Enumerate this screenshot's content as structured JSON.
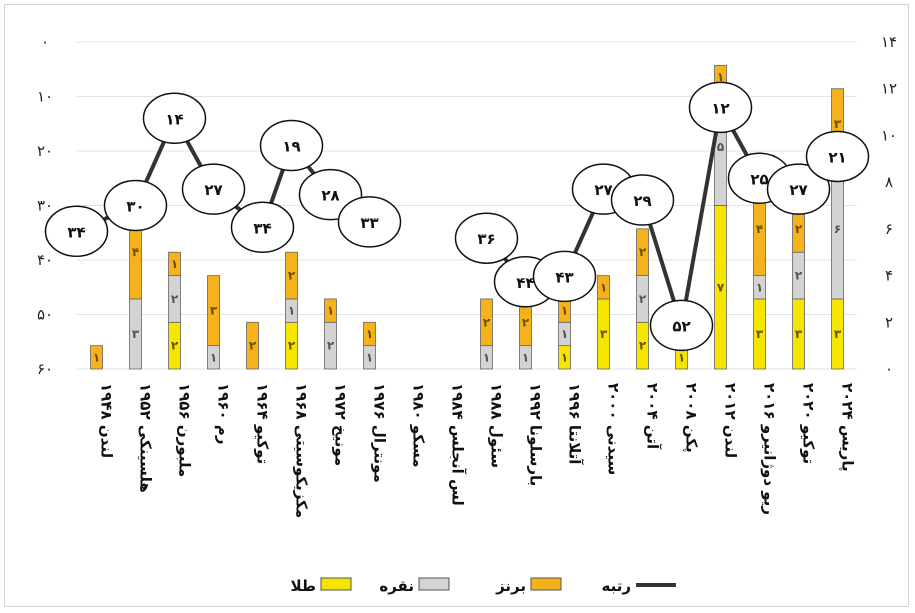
{
  "chart_data": {
    "type": "bar",
    "stacked": true,
    "categories": [
      "لندن ۱۹۴۸",
      "هلسینکی ۱۹۵۲",
      "ملبورن ۱۹۵۶",
      "رم ۱۹۶۰",
      "توکیو ۱۹۶۴",
      "مکزیکوسیتی ۱۹۶۸",
      "مونیخ ۱۹۷۲",
      "مونترال ۱۹۷۶",
      "مسکو ۱۹۸۰",
      "لس آنجلس ۱۹۸۴",
      "سئول ۱۹۸۸",
      "بارسلونا ۱۹۹۲",
      "آتلانتا ۱۹۹۶",
      "سیدنی ۲۰۰۰",
      "آتن ۲۰۰۴",
      "پکن ۲۰۰۸",
      "لندن ۲۰۱۲",
      "ریو دوژانیرو ۲۰۱۶",
      "توکیو ۲۰۲۰",
      "پاریس ۲۰۲۴"
    ],
    "series": [
      {
        "name": "طلا",
        "color": "#f5e500",
        "values": [
          0,
          0,
          2,
          0,
          0,
          2,
          0,
          0,
          0,
          0,
          0,
          0,
          1,
          3,
          2,
          1,
          7,
          3,
          3,
          3
        ],
        "labels": [
          "",
          "",
          "۲",
          "",
          "",
          "۲",
          "",
          "",
          "",
          "",
          "",
          "",
          "۱",
          "۳",
          "۲",
          "۱",
          "۷",
          "۳",
          "۳",
          "۳"
        ]
      },
      {
        "name": "نقره",
        "color": "#d3d3d3",
        "values": [
          0,
          3,
          2,
          1,
          0,
          1,
          2,
          1,
          0,
          0,
          1,
          1,
          1,
          0,
          2,
          0,
          5,
          1,
          2,
          6
        ],
        "labels": [
          "",
          "۳",
          "۲",
          "۱",
          "",
          "۱",
          "۲",
          "۱",
          "",
          "",
          "۱",
          "۱",
          "۱",
          "",
          "۲",
          "",
          "۵",
          "۱",
          "۲",
          "۶"
        ]
      },
      {
        "name": "برنز",
        "color": "#f5b21c",
        "values": [
          1,
          4,
          1,
          3,
          2,
          2,
          1,
          1,
          0,
          0,
          2,
          2,
          1,
          1,
          2,
          0,
          1,
          4,
          2,
          3
        ],
        "labels": [
          "۱",
          "۴",
          "۱",
          "۳",
          "۲",
          "۲",
          "۱",
          "۱",
          "",
          "",
          "۲",
          "۲",
          "۱",
          "۱",
          "۲",
          "",
          "۱",
          "۴",
          "۲",
          "۳"
        ]
      }
    ],
    "rank_series": {
      "name": "رتبه",
      "color": "#333333",
      "values": [
        34,
        30,
        14,
        27,
        34,
        19,
        28,
        33,
        null,
        null,
        36,
        44,
        43,
        27,
        29,
        52,
        12,
        25,
        27,
        21
      ],
      "labels": [
        "۳۴",
        "۳۰",
        "۱۴",
        "۲۷",
        "۳۴",
        "۱۹",
        "۲۸",
        "۳۳",
        "",
        "",
        "۳۶",
        "۴۴",
        "۴۳",
        "۲۷",
        "۲۹",
        "۵۲",
        "۱۲",
        "۲۵",
        "۲۷",
        "۲۱"
      ]
    },
    "y_left": {
      "label": "",
      "range": [
        60,
        0
      ],
      "ticks": [
        "۰",
        "۱۰",
        "۲۰",
        "۳۰",
        "۴۰",
        "۵۰",
        "۶۰"
      ],
      "tick_values": [
        0,
        10,
        20,
        30,
        40,
        50,
        60
      ],
      "inverted": true
    },
    "y_right": {
      "label": "",
      "range": [
        0,
        14
      ],
      "ticks": [
        "۰",
        "۲",
        "۴",
        "۶",
        "۸",
        "۱۰",
        "۱۲",
        "۱۴"
      ],
      "tick_values": [
        0,
        2,
        4,
        6,
        8,
        10,
        12,
        14
      ]
    },
    "grid": true,
    "legend_position": "bottom"
  },
  "legend": {
    "rank": "رتبه",
    "bronze": "برنز",
    "silver": "نقره",
    "gold": "طلا"
  }
}
